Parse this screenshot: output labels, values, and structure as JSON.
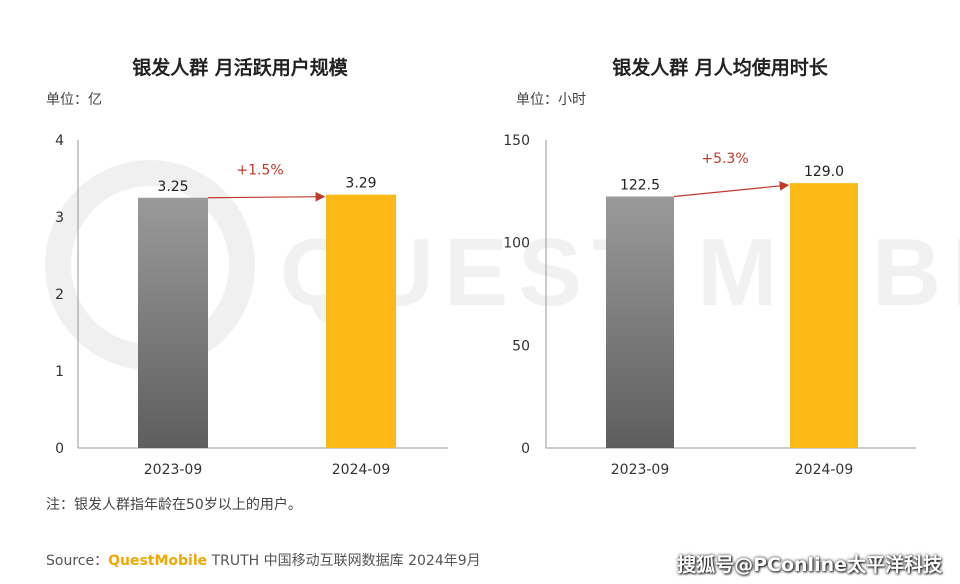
{
  "colors": {
    "gray_top": "#9a9a9a",
    "gray_bottom": "#5e5e5e",
    "gold": "#fbb817",
    "growth": "#c0392b",
    "axis": "#999999"
  },
  "chart_data": [
    {
      "type": "bar",
      "title": "银发人群 月活跃用户规模",
      "unit_label": "单位：亿",
      "categories": [
        "2023-09",
        "2024-09"
      ],
      "values": [
        3.25,
        3.29
      ],
      "value_labels": [
        "3.25",
        "3.29"
      ],
      "ylim": [
        0,
        4
      ],
      "yticks": [
        0,
        1,
        2,
        3,
        4
      ],
      "ytick_labels": [
        "0",
        "1",
        "2",
        "3",
        "4"
      ],
      "growth_label": "+1.5%"
    },
    {
      "type": "bar",
      "title": "银发人群 月人均使用时长",
      "unit_label": "单位：小时",
      "categories": [
        "2023-09",
        "2024-09"
      ],
      "values": [
        122.5,
        129.0
      ],
      "value_labels": [
        "122.5",
        "129.0"
      ],
      "ylim": [
        0,
        150
      ],
      "yticks": [
        0,
        50,
        100,
        150
      ],
      "ytick_labels": [
        "0",
        "50",
        "100",
        "150"
      ],
      "growth_label": "+5.3%"
    }
  ],
  "footer": {
    "note": "注：银发人群指年龄在50岁以上的用户。",
    "source_prefix": "Source：",
    "source_brand": "QuestMobile",
    "source_rest": " TRUTH 中国移动互联网数据库 2024年9月",
    "credit": "搜狐号@PConline太平洋科技"
  },
  "watermark": {
    "text": "QUEST MOBILE"
  }
}
